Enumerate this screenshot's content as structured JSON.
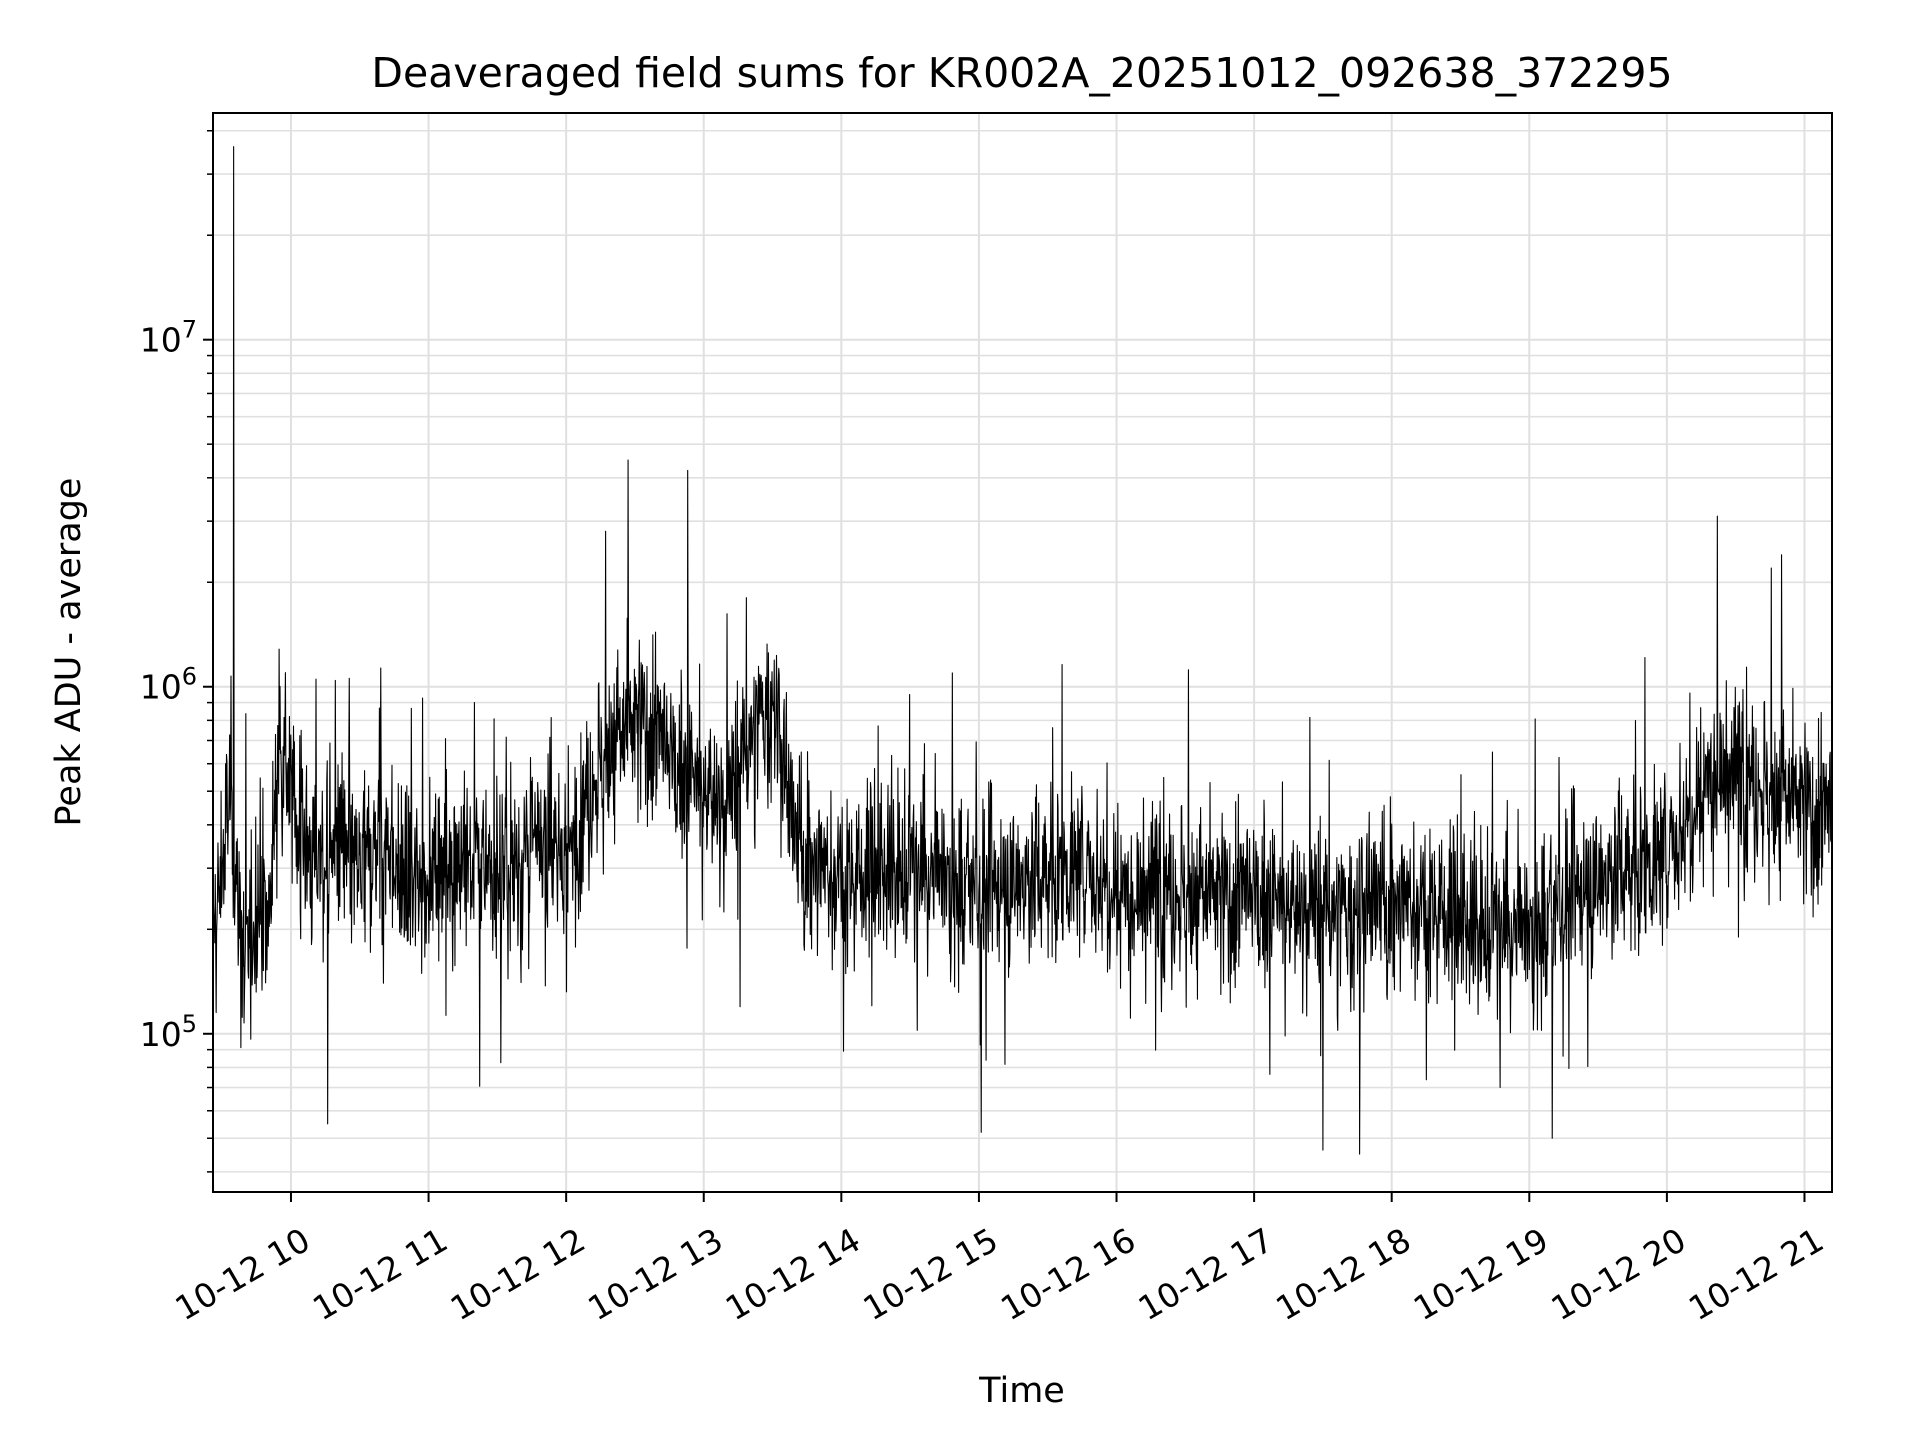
{
  "chart_data": {
    "type": "line",
    "title": "Deaveraged field sums for KR002A_20251012_092638_372295",
    "xlabel": "Time",
    "ylabel": "Peak ADU - average",
    "y_scale": "log",
    "ylim": [
      35000,
      45000000
    ],
    "xlim": [
      "2025-10-12 09:26",
      "2025-10-12 21:12"
    ],
    "grid": true,
    "grid_minor": true,
    "line_color": "#000000",
    "x_ticks": [
      {
        "value": "2025-10-12 10:00",
        "label": "10-12 10"
      },
      {
        "value": "2025-10-12 11:00",
        "label": "10-12 11"
      },
      {
        "value": "2025-10-12 12:00",
        "label": "10-12 12"
      },
      {
        "value": "2025-10-12 13:00",
        "label": "10-12 13"
      },
      {
        "value": "2025-10-12 14:00",
        "label": "10-12 14"
      },
      {
        "value": "2025-10-12 15:00",
        "label": "10-12 15"
      },
      {
        "value": "2025-10-12 16:00",
        "label": "10-12 16"
      },
      {
        "value": "2025-10-12 17:00",
        "label": "10-12 17"
      },
      {
        "value": "2025-10-12 18:00",
        "label": "10-12 18"
      },
      {
        "value": "2025-10-12 19:00",
        "label": "10-12 19"
      },
      {
        "value": "2025-10-12 20:00",
        "label": "10-12 20"
      },
      {
        "value": "2025-10-12 21:00",
        "label": "10-12 21"
      }
    ],
    "y_ticks": [
      {
        "value": 100000,
        "base": "10",
        "exp": "5"
      },
      {
        "value": 1000000,
        "base": "10",
        "exp": "6"
      },
      {
        "value": 10000000,
        "base": "10",
        "exp": "7"
      }
    ],
    "series": [
      {
        "points": [
          [
            "2025-10-12 09:26",
            180000
          ],
          [
            "2025-10-12 09:30",
            300000
          ],
          [
            "2025-10-12 09:34",
            550000
          ],
          [
            "2025-10-12 09:35",
            36000000
          ],
          [
            "2025-10-12 09:36",
            250000
          ],
          [
            "2025-10-12 09:40",
            150000
          ],
          [
            "2025-10-12 09:45",
            260000
          ],
          [
            "2025-10-12 09:50",
            200000
          ],
          [
            "2025-10-12 09:55",
            800000
          ],
          [
            "2025-10-12 10:00",
            500000
          ],
          [
            "2025-10-12 10:10",
            300000
          ],
          [
            "2025-10-12 10:16",
            55000
          ],
          [
            "2025-10-12 10:20",
            350000
          ],
          [
            "2025-10-12 10:30",
            280000
          ],
          [
            "2025-10-12 10:40",
            400000
          ],
          [
            "2025-10-12 10:50",
            250000
          ],
          [
            "2025-10-12 11:00",
            300000
          ],
          [
            "2025-10-12 11:10",
            330000
          ],
          [
            "2025-10-12 11:20",
            900000
          ],
          [
            "2025-10-12 11:30",
            280000
          ],
          [
            "2025-10-12 11:40",
            320000
          ],
          [
            "2025-10-12 11:50",
            350000
          ],
          [
            "2025-10-12 12:00",
            320000
          ],
          [
            "2025-10-12 12:10",
            500000
          ],
          [
            "2025-10-12 12:20",
            700000
          ],
          [
            "2025-10-12 12:27",
            4500000
          ],
          [
            "2025-10-12 12:35",
            800000
          ],
          [
            "2025-10-12 12:45",
            600000
          ],
          [
            "2025-10-12 12:53",
            4200000
          ],
          [
            "2025-10-12 13:00",
            500000
          ],
          [
            "2025-10-12 13:10",
            450000
          ],
          [
            "2025-10-12 13:20",
            700000
          ],
          [
            "2025-10-12 13:30",
            900000
          ],
          [
            "2025-10-12 13:40",
            350000
          ],
          [
            "2025-10-12 13:50",
            300000
          ],
          [
            "2025-10-12 14:00",
            280000
          ],
          [
            "2025-10-12 14:20",
            300000
          ],
          [
            "2025-10-12 14:40",
            280000
          ],
          [
            "2025-10-12 15:00",
            250000
          ],
          [
            "2025-10-12 15:01",
            52000
          ],
          [
            "2025-10-12 15:20",
            280000
          ],
          [
            "2025-10-12 15:40",
            300000
          ],
          [
            "2025-10-12 16:00",
            270000
          ],
          [
            "2025-10-12 16:20",
            260000
          ],
          [
            "2025-10-12 16:40",
            250000
          ],
          [
            "2025-10-12 17:00",
            240000
          ],
          [
            "2025-10-12 17:20",
            230000
          ],
          [
            "2025-10-12 17:40",
            220000
          ],
          [
            "2025-10-12 17:46",
            45000
          ],
          [
            "2025-10-12 18:00",
            240000
          ],
          [
            "2025-10-12 18:20",
            230000
          ],
          [
            "2025-10-12 18:40",
            200000
          ],
          [
            "2025-10-12 19:00",
            190000
          ],
          [
            "2025-10-12 19:10",
            50000
          ],
          [
            "2025-10-12 19:20",
            250000
          ],
          [
            "2025-10-12 19:40",
            300000
          ],
          [
            "2025-10-12 20:00",
            320000
          ],
          [
            "2025-10-12 20:20",
            600000
          ],
          [
            "2025-10-12 20:22",
            3100000
          ],
          [
            "2025-10-12 20:40",
            500000
          ],
          [
            "2025-10-12 20:50",
            2400000
          ],
          [
            "2025-10-12 21:00",
            450000
          ],
          [
            "2025-10-12 21:12",
            400000
          ]
        ]
      }
    ]
  }
}
